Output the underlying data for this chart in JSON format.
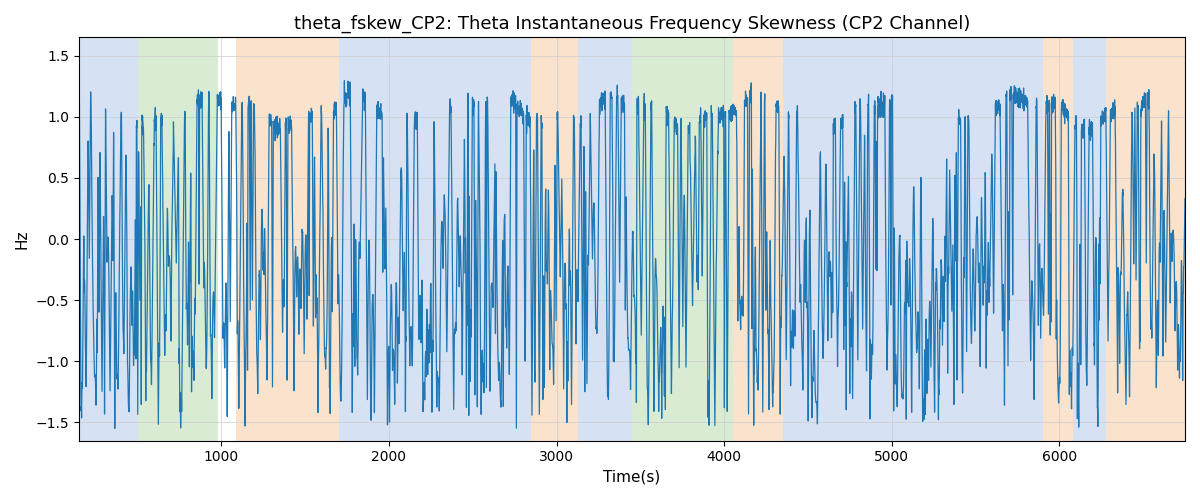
{
  "title": "theta_fskew_CP2: Theta Instantaneous Frequency Skewness (CP2 Channel)",
  "xlabel": "Time(s)",
  "ylabel": "Hz",
  "xlim": [
    150,
    6750
  ],
  "ylim": [
    -1.65,
    1.65
  ],
  "yticks": [
    -1.5,
    -1.0,
    -0.5,
    0.0,
    0.5,
    1.0,
    1.5
  ],
  "line_color": "#1f77b4",
  "line_width": 0.9,
  "background_bands": [
    {
      "start": 150,
      "end": 500,
      "color": "#aec6e8",
      "alpha": 0.5
    },
    {
      "start": 500,
      "end": 980,
      "color": "#b5dba8",
      "alpha": 0.5
    },
    {
      "start": 1090,
      "end": 1700,
      "color": "#f5c89a",
      "alpha": 0.5
    },
    {
      "start": 1700,
      "end": 2850,
      "color": "#aec6e8",
      "alpha": 0.5
    },
    {
      "start": 2850,
      "end": 3130,
      "color": "#f5c89a",
      "alpha": 0.5
    },
    {
      "start": 3130,
      "end": 3450,
      "color": "#aec6e8",
      "alpha": 0.5
    },
    {
      "start": 3450,
      "end": 4050,
      "color": "#b5dba8",
      "alpha": 0.5
    },
    {
      "start": 4050,
      "end": 4350,
      "color": "#f5c89a",
      "alpha": 0.5
    },
    {
      "start": 4350,
      "end": 5900,
      "color": "#aec6e8",
      "alpha": 0.5
    },
    {
      "start": 5900,
      "end": 6080,
      "color": "#f5c89a",
      "alpha": 0.5
    },
    {
      "start": 6080,
      "end": 6280,
      "color": "#aec6e8",
      "alpha": 0.5
    },
    {
      "start": 6280,
      "end": 6750,
      "color": "#f5c89a",
      "alpha": 0.5
    }
  ],
  "title_fontsize": 13,
  "label_fontsize": 11,
  "grid_color": "#cccccc",
  "grid_linewidth": 0.5
}
